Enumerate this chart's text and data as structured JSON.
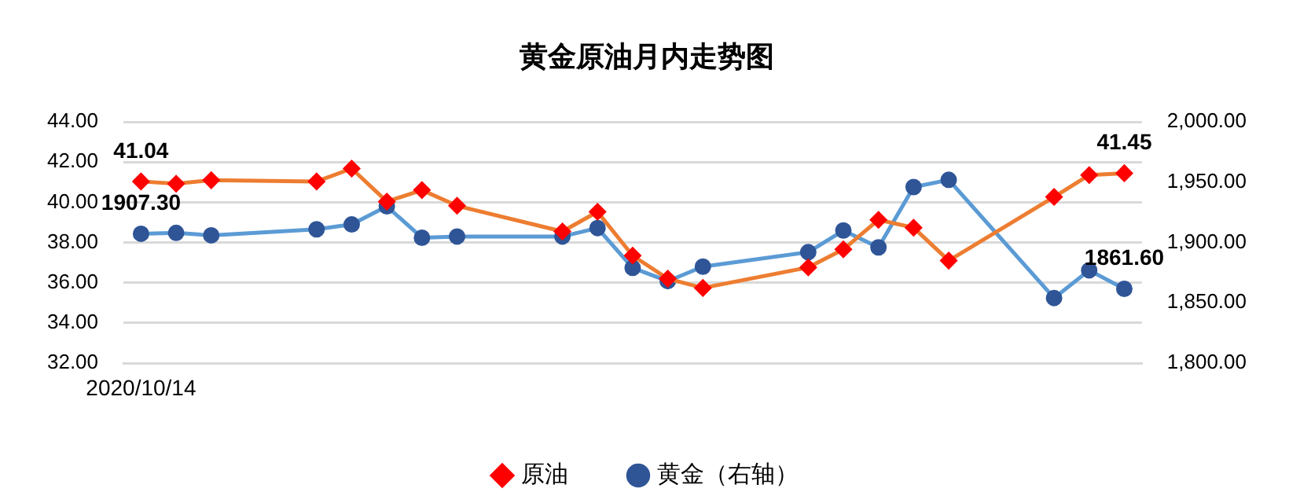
{
  "chart_data": {
    "type": "line",
    "title": "黄金原油月内走势图",
    "categories": [
      "2020/10/14",
      null,
      null,
      null,
      null,
      null,
      null,
      null,
      null,
      null,
      null,
      null,
      null,
      null,
      null,
      null,
      null,
      null,
      null,
      null,
      null,
      null,
      null,
      null,
      null,
      null,
      null,
      null,
      null
    ],
    "series": [
      {
        "name": "原油",
        "color": "#ed7d31",
        "colors": [
          "#ff0000",
          "#ff0000",
          "#ff0000",
          "#ff0000",
          "#ff0000",
          "#ff0000",
          "#ff0000",
          "#ff0000",
          "#ff0000",
          "#ff0000",
          "#ff0000",
          "#ff0000",
          "#ff0000",
          "#ff0000",
          "#ff0000",
          "#ff0000",
          "#ff0000",
          "#ff0000",
          "#ff0000",
          "#ff0000",
          "#ff0000",
          "#ff0000",
          "#ff0000",
          "#ff0000",
          "#ff0000",
          "#ff0000",
          "#ff0000",
          "#ff0000",
          "#ff0000"
        ],
        "marker": "diamond",
        "values": [
          41.04,
          40.93,
          41.1,
          null,
          null,
          41.04,
          41.68,
          40.04,
          40.61,
          39.83,
          null,
          null,
          38.55,
          39.53,
          37.35,
          36.2,
          35.74,
          null,
          null,
          36.76,
          37.66,
          39.13,
          38.74,
          37.1,
          null,
          null,
          40.27,
          41.36,
          41.45
        ],
        "value_labels": [
          "41.04",
          null,
          null,
          null,
          null,
          null,
          null,
          null,
          null,
          null,
          null,
          null,
          null,
          null,
          null,
          null,
          null,
          null,
          null,
          null,
          null,
          null,
          null,
          null,
          null,
          null,
          null,
          null,
          "41.45"
        ]
      },
      {
        "name": "黄金（右轴）",
        "color": "#5b9bd5",
        "colors": [
          "#2f5597",
          "#2f5597",
          "#2f5597",
          "#2f5597",
          "#2f5597",
          "#2f5597",
          "#2f5597",
          "#2f5597",
          "#2f5597",
          "#2f5597",
          "#2f5597",
          "#2f5597",
          "#2f5597",
          "#2f5597",
          "#2f5597",
          "#2f5597",
          "#2f5597",
          "#2f5597",
          "#2f5597",
          "#2f5597",
          "#2f5597",
          "#2f5597",
          "#2f5597",
          "#2f5597",
          "#2f5597",
          "#2f5597",
          "#2f5597",
          "#2f5597",
          "#2f5597"
        ],
        "marker": "circle",
        "axis": "y2",
        "values": [
          1907.3,
          1908,
          1906,
          null,
          null,
          1911,
          1915,
          1930,
          1904,
          1905,
          null,
          null,
          1905,
          1912,
          1879,
          1868,
          1880,
          null,
          null,
          1892,
          1910,
          1896,
          1946,
          1952,
          null,
          null,
          1854,
          1877,
          1861.6
        ],
        "value_labels": [
          "1907.30",
          null,
          null,
          null,
          null,
          null,
          null,
          null,
          null,
          null,
          null,
          null,
          null,
          null,
          null,
          null,
          null,
          null,
          null,
          null,
          null,
          null,
          null,
          null,
          null,
          null,
          null,
          null,
          "1861.60"
        ]
      }
    ],
    "ylim": [
      32,
      44
    ],
    "yticks": [
      {
        "value": 32,
        "label": "32.00"
      },
      {
        "value": 34,
        "label": "34.00"
      },
      {
        "value": 36,
        "label": "36.00"
      },
      {
        "value": 38,
        "label": "38.00"
      },
      {
        "value": 40,
        "label": "40.00"
      },
      {
        "value": 42,
        "label": "42.00"
      },
      {
        "value": 44,
        "label": "44.00"
      }
    ],
    "y2lim": [
      1800,
      2000
    ],
    "y2ticks": [
      {
        "value": 1800,
        "label": "1,800.00"
      },
      {
        "value": 1850,
        "label": "1,850.00"
      },
      {
        "value": 1900,
        "label": "1,900.00"
      },
      {
        "value": 1950,
        "label": "1,950.00"
      },
      {
        "value": 2000,
        "label": "2,000.00"
      }
    ],
    "grid": "y",
    "legend": "bottom",
    "line_style": "solid"
  }
}
